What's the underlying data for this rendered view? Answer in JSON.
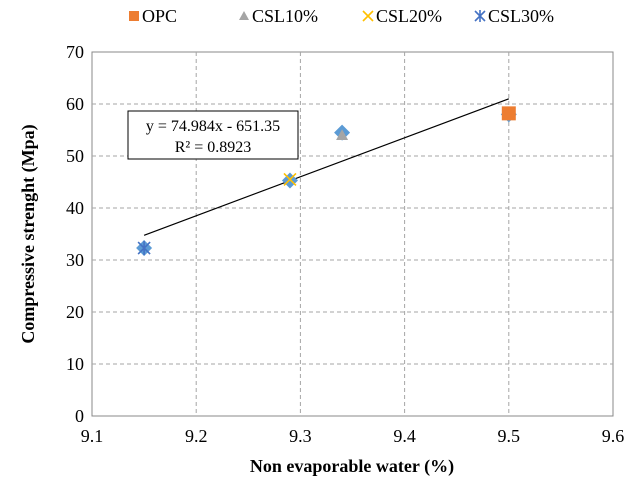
{
  "chart_data": {
    "type": "scatter",
    "xlabel": "Non evaporable water (%)",
    "ylabel": "Compressive strenght (Mpa)",
    "xlim": [
      9.1,
      9.6
    ],
    "ylim": [
      0,
      70
    ],
    "x_ticks": [
      "9.1",
      "9.2",
      "9.3",
      "9.4",
      "9.5",
      "9.6"
    ],
    "y_ticks": [
      "0",
      "10",
      "20",
      "30",
      "40",
      "50",
      "60",
      "70"
    ],
    "x_tick_values": [
      9.1,
      9.2,
      9.3,
      9.4,
      9.5,
      9.6
    ],
    "y_tick_values": [
      0,
      10,
      20,
      30,
      40,
      50,
      60,
      70
    ],
    "grid": true,
    "legend_position": "top",
    "series": [
      {
        "name": "OPC",
        "marker": "square",
        "color": "#ED7D31",
        "points": [
          [
            9.5,
            58.2
          ]
        ]
      },
      {
        "name": "CSL10%",
        "marker": "triangle",
        "color": "#A5A5A5",
        "points": [
          [
            9.34,
            54.0
          ]
        ]
      },
      {
        "name": "CSL20%",
        "marker": "x",
        "color": "#FFC000",
        "points": [
          [
            9.29,
            45.5
          ]
        ]
      },
      {
        "name": "CSL30%",
        "marker": "star",
        "color": "#4472C4",
        "points": [
          [
            9.15,
            32.3
          ]
        ]
      }
    ],
    "overlay_points": {
      "marker": "diamond",
      "color": "#5B9BD5",
      "points": [
        [
          9.15,
          32.3
        ],
        [
          9.29,
          45.3
        ],
        [
          9.34,
          54.5
        ],
        [
          9.5,
          58.0
        ]
      ]
    },
    "trendline": {
      "type": "linear",
      "slope": 74.984,
      "intercept": -651.35,
      "x_range": [
        9.15,
        9.5
      ],
      "equation": "y = 74.984x - 651.35",
      "r_squared": "R² = 0.8923"
    }
  }
}
